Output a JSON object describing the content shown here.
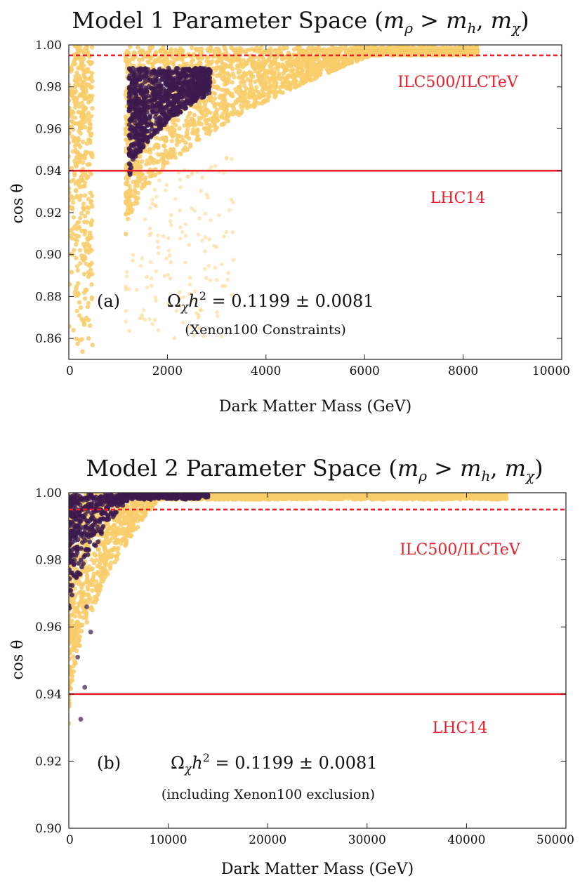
{
  "chart_data": [
    {
      "type": "scatter",
      "title": "Model 1 Parameter Space (m_ρ > m_h, m_χ)",
      "title_parts": {
        "lead": "Model 1 Parameter Space (",
        "m1": "m",
        "s1": "ρ",
        "gt": " > ",
        "m2": "m",
        "s2": "h",
        "comma": ", ",
        "m3": "m",
        "s3": "χ",
        "close": ")"
      },
      "xlabel": "Dark Matter Mass (GeV)",
      "ylabel": "cos θ",
      "xlim": [
        0,
        10000
      ],
      "ylim": [
        0.85,
        1.0
      ],
      "xticks": [
        "0",
        "2000",
        "4000",
        "6000",
        "8000",
        "10000"
      ],
      "xtick_values": [
        0,
        2000,
        4000,
        6000,
        8000,
        10000
      ],
      "yticks": [
        "1.00",
        "0.98",
        "0.96",
        "0.94",
        "0.92",
        "0.90",
        "0.88",
        "0.86"
      ],
      "ytick_values": [
        1.0,
        0.98,
        0.96,
        0.94,
        0.92,
        0.9,
        0.88,
        0.86
      ],
      "panel_label": "(a)",
      "annotation": "Ω_χh² = 0.1199 ± 0.0081",
      "annotation_parts": {
        "omega": "Ω",
        "chi": "χ",
        "h": "h",
        "two": "2",
        "rest": " = 0.1199 ± 0.0081"
      },
      "annotation_sub": "(Xenon100 Constraints)",
      "reference_lines": [
        {
          "y": 0.995,
          "style": "dashed",
          "color": "#e8202a",
          "label": "ILC500/ILCTeV"
        },
        {
          "y": 0.94,
          "style": "solid",
          "color": "#e8202a",
          "label": "LHC14"
        }
      ],
      "series": [
        {
          "color": "#f8cc6a",
          "regions": [
            {
              "x": [
                0,
                500
              ],
              "y": [
                0.85,
                1.0
              ]
            },
            {
              "x": [
                1150,
                8300
              ],
              "y": [
                0.9,
                0.9995
              ],
              "trend": "upper-right fan"
            }
          ]
        },
        {
          "color": "#3c1a4e",
          "regions": [
            {
              "x": [
                1200,
                2900
              ],
              "y": [
                0.93,
                0.989
              ]
            }
          ]
        }
      ]
    },
    {
      "type": "scatter",
      "title": "Model 2 Parameter Space (m_ρ > m_h, m_χ)",
      "title_parts": {
        "lead": "Model 2 Parameter Space (",
        "m1": "m",
        "s1": "ρ",
        "gt": " > ",
        "m2": "m",
        "s2": "h",
        "comma": ", ",
        "m3": "m",
        "s3": "χ",
        "close": ")"
      },
      "xlabel": "Dark Matter Mass (GeV)",
      "ylabel": "cos θ",
      "xlim": [
        0,
        50000
      ],
      "ylim": [
        0.9,
        1.0
      ],
      "xticks": [
        "0",
        "10000",
        "20000",
        "30000",
        "40000",
        "50000"
      ],
      "xtick_values": [
        0,
        10000,
        20000,
        30000,
        40000,
        50000
      ],
      "yticks": [
        "1.00",
        "0.98",
        "0.96",
        "0.94",
        "0.92",
        "0.90"
      ],
      "ytick_values": [
        1.0,
        0.98,
        0.96,
        0.94,
        0.92,
        0.9
      ],
      "panel_label": "(b)",
      "annotation": "Ω_χh² = 0.1199 ± 0.0081",
      "annotation_parts": {
        "omega": "Ω",
        "chi": "χ",
        "h": "h",
        "two": "2",
        "rest": " = 0.1199 ± 0.0081"
      },
      "annotation_sub": "(including Xenon100 exclusion)",
      "reference_lines": [
        {
          "y": 0.995,
          "style": "dashed",
          "color": "#e8202a",
          "label": "ILC500/ILCTeV"
        },
        {
          "y": 0.94,
          "style": "solid",
          "color": "#e8202a",
          "label": "LHC14"
        }
      ],
      "series": [
        {
          "color": "#f8cc6a",
          "regions": [
            {
              "x": [
                0,
                44000
              ],
              "y": [
                0.93,
                1.0
              ],
              "trend": "rises toward 1 with mass"
            }
          ]
        },
        {
          "color": "#3c1a4e",
          "regions": [
            {
              "x": [
                0,
                14000
              ],
              "y": [
                0.932,
                1.0
              ]
            }
          ]
        }
      ]
    }
  ]
}
